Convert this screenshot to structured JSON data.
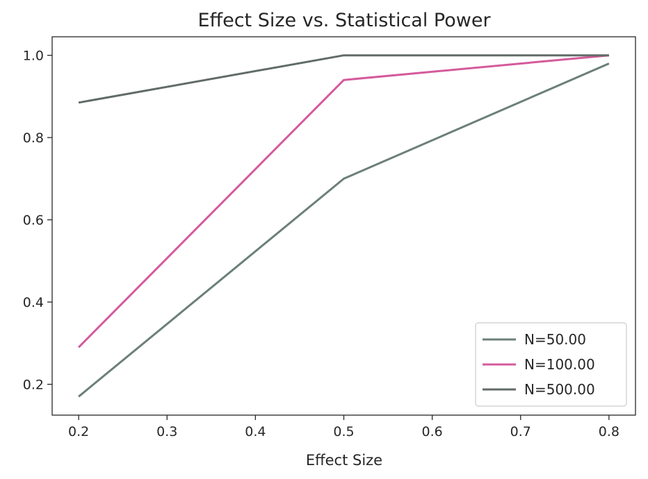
{
  "chart_data": {
    "type": "line",
    "title": "Effect Size vs. Statistical Power",
    "xlabel": "Effect Size",
    "ylabel": "",
    "x": [
      0.2,
      0.5,
      0.8
    ],
    "xlim": [
      0.17,
      0.83
    ],
    "ylim": [
      0.125,
      1.045
    ],
    "xticks": [
      0.2,
      0.3,
      0.4,
      0.5,
      0.6,
      0.7,
      0.8
    ],
    "xtick_labels": [
      "0.2",
      "0.3",
      "0.4",
      "0.5",
      "0.6",
      "0.7",
      "0.8"
    ],
    "yticks": [
      0.2,
      0.4,
      0.6,
      0.8,
      1.0
    ],
    "ytick_labels": [
      "0.2",
      "0.4",
      "0.6",
      "0.8",
      "1.0"
    ],
    "grid": false,
    "legend_position": "lower-right",
    "series": [
      {
        "name": "N=50.00",
        "values": [
          0.17,
          0.7,
          0.98
        ],
        "color": "#6b7f78"
      },
      {
        "name": "N=100.00",
        "values": [
          0.29,
          0.94,
          1.0
        ],
        "color": "#d45a9c"
      },
      {
        "name": "N=500.00",
        "values": [
          0.885,
          1.0,
          1.0
        ],
        "color": "#616b68"
      }
    ]
  }
}
